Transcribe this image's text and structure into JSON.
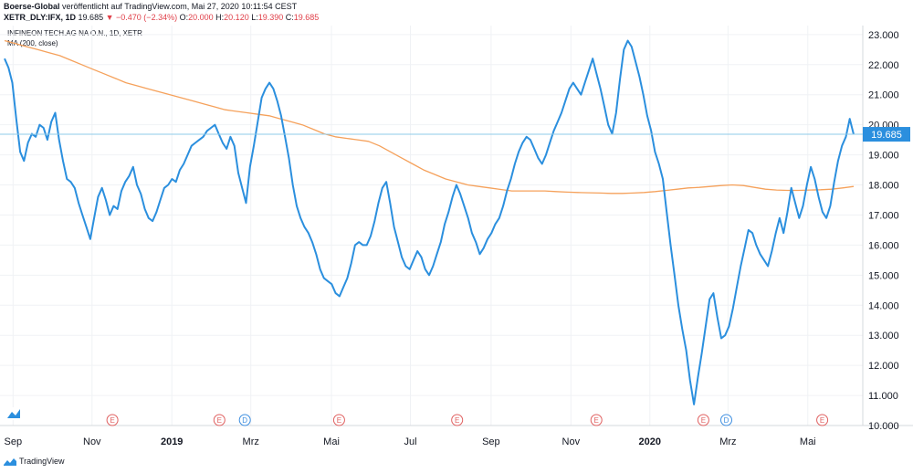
{
  "header": {
    "publisher": "Boerse-Global",
    "published_text": "veröffentlicht auf TradingView.com, Mai 27, 2020 10:11:54 CEST",
    "symbol_line": "XETR_DLY:IFX, 1D",
    "last": "19.685",
    "change": "−0.470 (−2.34%)",
    "ohlc": {
      "o_label": "O:",
      "o": "20.000",
      "h_label": "H:",
      "h": "20.120",
      "l_label": "L:",
      "l": "19.390",
      "c_label": "C:",
      "c": "19.685"
    }
  },
  "pane_title": "INFINEON TECH.AG NA O.N., 1D, XETR",
  "ma_title": "MA (200, close)",
  "footer": {
    "brand": "TradingView"
  },
  "colors": {
    "price": "#2b8fde",
    "ma": "#f5a15b",
    "last_line": "#8fcbe8",
    "last_badge": "#2b8fde",
    "event": "#e06060",
    "dividend": "#3d8ee0",
    "axis": "#131722"
  },
  "chart_data": {
    "type": "line",
    "title": "INFINEON TECH.AG NA O.N., 1D, XETR",
    "ylim": [
      10.0,
      23.3
    ],
    "y_ticks": [
      "23.000",
      "22.000",
      "21.000",
      "20.000",
      "19.000",
      "18.000",
      "17.000",
      "16.000",
      "15.000",
      "14.000",
      "13.000",
      "12.000",
      "11.000",
      "10.000"
    ],
    "last_value": "19.685",
    "x_tick_labels": [
      {
        "label": "Sep",
        "pos": 0.01,
        "bold": false
      },
      {
        "label": "Nov",
        "pos": 0.103,
        "bold": false
      },
      {
        "label": "2019",
        "pos": 0.197,
        "bold": true
      },
      {
        "label": "Mrz",
        "pos": 0.29,
        "bold": false
      },
      {
        "label": "Mai",
        "pos": 0.385,
        "bold": false
      },
      {
        "label": "Jul",
        "pos": 0.478,
        "bold": false
      },
      {
        "label": "Sep",
        "pos": 0.573,
        "bold": false
      },
      {
        "label": "Nov",
        "pos": 0.667,
        "bold": false
      },
      {
        "label": "2020",
        "pos": 0.76,
        "bold": true
      },
      {
        "label": "Mrz",
        "pos": 0.852,
        "bold": false
      },
      {
        "label": "Mai",
        "pos": 0.946,
        "bold": false
      }
    ],
    "events": [
      {
        "label": "E",
        "pos": 0.127,
        "kind": "earnings"
      },
      {
        "label": "E",
        "pos": 0.253,
        "kind": "earnings"
      },
      {
        "label": "D",
        "pos": 0.283,
        "kind": "dividend"
      },
      {
        "label": "E",
        "pos": 0.394,
        "kind": "earnings"
      },
      {
        "label": "E",
        "pos": 0.533,
        "kind": "earnings"
      },
      {
        "label": "E",
        "pos": 0.697,
        "kind": "earnings"
      },
      {
        "label": "E",
        "pos": 0.823,
        "kind": "earnings"
      },
      {
        "label": "D",
        "pos": 0.85,
        "kind": "dividend"
      },
      {
        "label": "E",
        "pos": 0.963,
        "kind": "earnings"
      }
    ],
    "series": [
      {
        "name": "INFINEON TECH.AG NA O.N.",
        "values": [
          22.2,
          21.9,
          21.4,
          20.2,
          19.1,
          18.8,
          19.4,
          19.7,
          19.6,
          20.0,
          19.9,
          19.5,
          20.1,
          20.4,
          19.5,
          18.8,
          18.2,
          18.1,
          17.9,
          17.4,
          17.0,
          16.6,
          16.2,
          16.9,
          17.6,
          17.9,
          17.5,
          17.0,
          17.3,
          17.2,
          17.8,
          18.1,
          18.3,
          18.6,
          18.0,
          17.7,
          17.2,
          16.9,
          16.8,
          17.1,
          17.5,
          17.9,
          18.0,
          18.2,
          18.1,
          18.5,
          18.7,
          19.0,
          19.3,
          19.4,
          19.5,
          19.6,
          19.8,
          19.9,
          20.0,
          19.7,
          19.4,
          19.2,
          19.6,
          19.3,
          18.4,
          17.9,
          17.4,
          18.6,
          19.3,
          20.1,
          20.9,
          21.2,
          21.4,
          21.2,
          20.8,
          20.3,
          19.6,
          18.9,
          18.0,
          17.3,
          16.9,
          16.6,
          16.4,
          16.1,
          15.7,
          15.2,
          14.9,
          14.8,
          14.7,
          14.4,
          14.3,
          14.6,
          14.9,
          15.4,
          16.0,
          16.1,
          16.0,
          16.0,
          16.3,
          16.8,
          17.4,
          17.9,
          18.1,
          17.4,
          16.6,
          16.1,
          15.6,
          15.3,
          15.2,
          15.5,
          15.8,
          15.6,
          15.2,
          15.0,
          15.3,
          15.7,
          16.1,
          16.7,
          17.1,
          17.6,
          18.0,
          17.7,
          17.3,
          16.9,
          16.4,
          16.1,
          15.7,
          15.9,
          16.2,
          16.4,
          16.7,
          16.9,
          17.3,
          17.8,
          18.2,
          18.7,
          19.1,
          19.4,
          19.6,
          19.5,
          19.2,
          18.9,
          18.7,
          19.0,
          19.4,
          19.8,
          20.1,
          20.4,
          20.8,
          21.2,
          21.4,
          21.2,
          21.0,
          21.4,
          21.8,
          22.2,
          21.7,
          21.2,
          20.6,
          20.0,
          19.7,
          20.4,
          21.5,
          22.5,
          22.8,
          22.6,
          22.1,
          21.6,
          21.0,
          20.3,
          19.8,
          19.1,
          18.7,
          18.2,
          17.1,
          16.0,
          15.0,
          14.0,
          13.2,
          12.5,
          11.5,
          10.7,
          11.6,
          12.4,
          13.3,
          14.2,
          14.4,
          13.6,
          12.9,
          13.0,
          13.3,
          13.9,
          14.6,
          15.3,
          15.9,
          16.5,
          16.4,
          16.0,
          15.7,
          15.5,
          15.3,
          15.8,
          16.4,
          16.9,
          16.4,
          17.1,
          17.9,
          17.4,
          16.9,
          17.3,
          18.0,
          18.6,
          18.2,
          17.6,
          17.1,
          16.9,
          17.3,
          18.1,
          18.8,
          19.3,
          19.6,
          20.2,
          19.685
        ]
      },
      {
        "name": "MA (200, close)",
        "values": [
          22.8,
          22.7,
          22.6,
          22.5,
          22.4,
          22.3,
          22.15,
          22.0,
          21.85,
          21.7,
          21.55,
          21.4,
          21.3,
          21.2,
          21.1,
          21.0,
          20.9,
          20.8,
          20.7,
          20.6,
          20.5,
          20.45,
          20.4,
          20.35,
          20.3,
          20.2,
          20.1,
          20.0,
          19.85,
          19.7,
          19.6,
          19.55,
          19.5,
          19.45,
          19.3,
          19.1,
          18.9,
          18.7,
          18.5,
          18.35,
          18.2,
          18.1,
          18.0,
          17.95,
          17.9,
          17.85,
          17.8,
          17.8,
          17.8,
          17.8,
          17.78,
          17.76,
          17.75,
          17.74,
          17.73,
          17.72,
          17.72,
          17.73,
          17.75,
          17.78,
          17.82,
          17.86,
          17.9,
          17.92,
          17.95,
          17.98,
          18.0,
          17.98,
          17.92,
          17.86,
          17.83,
          17.82,
          17.82,
          17.83,
          17.84,
          17.86,
          17.9,
          17.95
        ]
      }
    ]
  }
}
